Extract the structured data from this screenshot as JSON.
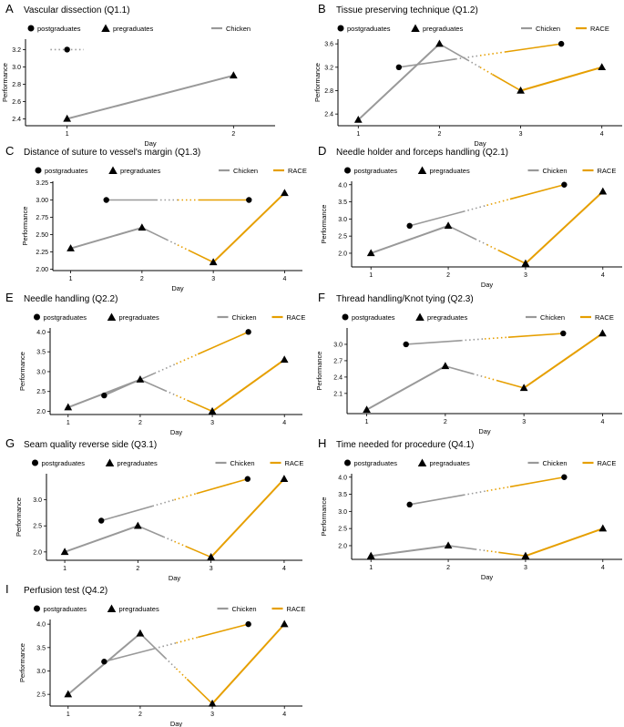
{
  "colors": {
    "chicken": "#999999",
    "race": "#E69F00",
    "marker": "#000000",
    "axis": "#000000"
  },
  "legend": {
    "postgraduates": "postgraduates",
    "pregraduates": "pregraduates",
    "chicken": "Chicken",
    "race": "RACE"
  },
  "chart_data": [
    {
      "type": "line",
      "letter": "A",
      "title": "Vascular dissection (Q1.1)",
      "xlabel": "Day",
      "ylabel": "Performance",
      "xlim": [
        0.75,
        2.25
      ],
      "ylim": [
        2.32,
        3.32
      ],
      "xticks": [
        "1",
        "2"
      ],
      "yticks": [
        "2.4",
        "2.6",
        "2.8",
        "3.0",
        "3.2"
      ],
      "yticks_values": [
        2.4,
        2.6,
        2.8,
        3.0,
        3.2
      ],
      "legend_items": [
        "postgraduates",
        "pregraduates",
        "chicken"
      ],
      "series": [
        {
          "name": "pregraduates",
          "marker": "triangle",
          "points": [
            [
              1,
              2.4
            ],
            [
              2,
              2.9
            ]
          ],
          "segments": [
            {
              "from": 0,
              "to": 1,
              "color": "chicken",
              "style": "solid"
            }
          ]
        },
        {
          "name": "postgraduates",
          "marker": "circle",
          "points": [
            [
              1,
              3.2
            ]
          ],
          "stubs": [
            {
              "x1": 0.9,
              "x2": 1.1,
              "y": 3.2,
              "color": "chicken",
              "style": "dotted"
            }
          ]
        }
      ]
    },
    {
      "type": "line",
      "letter": "B",
      "title": "Tissue preserving technique (Q1.2)",
      "xlabel": "Day",
      "ylabel": "Performance",
      "xlim": [
        0.75,
        4.25
      ],
      "ylim": [
        2.2,
        3.68
      ],
      "xticks": [
        "1",
        "2",
        "3",
        "4"
      ],
      "yticks": [
        "2.4",
        "2.8",
        "3.2",
        "3.6"
      ],
      "yticks_values": [
        2.4,
        2.8,
        3.2,
        3.6
      ],
      "legend_items": [
        "postgraduates",
        "pregraduates",
        "chicken",
        "race"
      ],
      "series": [
        {
          "name": "pregraduates",
          "marker": "triangle",
          "points": [
            [
              1,
              2.3
            ],
            [
              2,
              3.6
            ],
            [
              3,
              2.8
            ],
            [
              4,
              3.2
            ]
          ],
          "segments": [
            {
              "from": 0,
              "to": 1,
              "color": "chicken",
              "style": "solid"
            },
            {
              "from": 1,
              "to": 2,
              "color": "mixed",
              "style": "dotted"
            },
            {
              "from": 2,
              "to": 3,
              "color": "race",
              "style": "solid"
            }
          ]
        },
        {
          "name": "postgraduates",
          "marker": "circle",
          "points": [
            [
              1.5,
              3.2
            ],
            [
              3.5,
              3.6
            ]
          ],
          "segments": [
            {
              "from": 0,
              "to": 1,
              "color": "mixed",
              "style": "dotted"
            }
          ]
        }
      ]
    },
    {
      "type": "line",
      "letter": "C",
      "title": "Distance of suture to vessel's margin (Q1.3)",
      "xlabel": "Day",
      "ylabel": "Performance",
      "xlim": [
        0.75,
        4.25
      ],
      "ylim": [
        1.98,
        3.27
      ],
      "xticks": [
        "1",
        "2",
        "3",
        "4"
      ],
      "yticks": [
        "2.00",
        "2.25",
        "2.50",
        "2.75",
        "3.00",
        "3.25"
      ],
      "yticks_values": [
        2.0,
        2.25,
        2.5,
        2.75,
        3.0,
        3.25
      ],
      "legend_items": [
        "postgraduates",
        "pregraduates",
        "chicken",
        "race"
      ],
      "series": [
        {
          "name": "pregraduates",
          "marker": "triangle",
          "points": [
            [
              1,
              2.3
            ],
            [
              2,
              2.6
            ],
            [
              3,
              2.1
            ],
            [
              4,
              3.1
            ]
          ],
          "segments": [
            {
              "from": 0,
              "to": 1,
              "color": "chicken",
              "style": "solid"
            },
            {
              "from": 1,
              "to": 2,
              "color": "mixed",
              "style": "dotted"
            },
            {
              "from": 2,
              "to": 3,
              "color": "race",
              "style": "solid"
            }
          ]
        },
        {
          "name": "postgraduates",
          "marker": "circle",
          "points": [
            [
              1.5,
              3.0
            ],
            [
              3.5,
              3.0
            ]
          ],
          "segments": [
            {
              "from": 0,
              "to": 1,
              "color": "mixed",
              "style": "dotted"
            }
          ]
        }
      ]
    },
    {
      "type": "line",
      "letter": "D",
      "title": "Needle holder and forceps handling (Q2.1)",
      "xlabel": "Day",
      "ylabel": "Performance",
      "xlim": [
        0.75,
        4.25
      ],
      "ylim": [
        1.6,
        4.1
      ],
      "xticks": [
        "1",
        "2",
        "3",
        "4"
      ],
      "yticks": [
        "2.0",
        "2.5",
        "3.0",
        "3.5",
        "4.0"
      ],
      "yticks_values": [
        2.0,
        2.5,
        3.0,
        3.5,
        4.0
      ],
      "legend_items": [
        "postgraduates",
        "pregraduates",
        "chicken",
        "race"
      ],
      "series": [
        {
          "name": "pregraduates",
          "marker": "triangle",
          "points": [
            [
              1,
              2.0
            ],
            [
              2,
              2.8
            ],
            [
              3,
              1.7
            ],
            [
              4,
              3.8
            ]
          ],
          "segments": [
            {
              "from": 0,
              "to": 1,
              "color": "chicken",
              "style": "solid"
            },
            {
              "from": 1,
              "to": 2,
              "color": "mixed",
              "style": "dotted"
            },
            {
              "from": 2,
              "to": 3,
              "color": "race",
              "style": "solid"
            }
          ]
        },
        {
          "name": "postgraduates",
          "marker": "circle",
          "points": [
            [
              1.5,
              2.8
            ],
            [
              3.5,
              4.0
            ]
          ],
          "segments": [
            {
              "from": 0,
              "to": 1,
              "color": "mixed",
              "style": "dotted"
            }
          ]
        }
      ]
    },
    {
      "type": "line",
      "letter": "E",
      "title": "Needle handling (Q2.2)",
      "xlabel": "Day",
      "ylabel": "Performance",
      "xlim": [
        0.75,
        4.25
      ],
      "ylim": [
        1.92,
        4.1
      ],
      "xticks": [
        "1",
        "2",
        "3",
        "4"
      ],
      "yticks": [
        "2.0",
        "2.5",
        "3.0",
        "3.5",
        "4.0"
      ],
      "yticks_values": [
        2.0,
        2.5,
        3.0,
        3.5,
        4.0
      ],
      "legend_items": [
        "postgraduates",
        "pregraduates",
        "chicken",
        "race"
      ],
      "series": [
        {
          "name": "pregraduates",
          "marker": "triangle",
          "points": [
            [
              1,
              2.1
            ],
            [
              2,
              2.8
            ],
            [
              3,
              2.0
            ],
            [
              4,
              3.3
            ]
          ],
          "segments": [
            {
              "from": 0,
              "to": 1,
              "color": "chicken",
              "style": "solid"
            },
            {
              "from": 1,
              "to": 2,
              "color": "mixed",
              "style": "dotted"
            },
            {
              "from": 2,
              "to": 3,
              "color": "race",
              "style": "solid"
            }
          ]
        },
        {
          "name": "postgraduates",
          "marker": "circle",
          "points": [
            [
              1.5,
              2.4
            ],
            [
              3.5,
              4.0
            ]
          ],
          "segments": [
            {
              "from": 0,
              "to": 1,
              "color": "mixed",
              "style": "dotted"
            }
          ]
        }
      ]
    },
    {
      "type": "line",
      "letter": "F",
      "title": "Thread handling/Knot tying  (Q2.3)",
      "xlabel": "Day",
      "ylabel": "Performance",
      "xlim": [
        0.75,
        4.25
      ],
      "ylim": [
        1.73,
        3.3
      ],
      "xticks": [
        "1",
        "2",
        "3",
        "4"
      ],
      "yticks": [
        "2.1",
        "2.4",
        "2.7",
        "3.0"
      ],
      "yticks_values": [
        2.1,
        2.4,
        2.7,
        3.0
      ],
      "legend_items": [
        "postgraduates",
        "pregraduates",
        "chicken",
        "race"
      ],
      "series": [
        {
          "name": "pregraduates",
          "marker": "triangle",
          "points": [
            [
              1,
              1.8
            ],
            [
              2,
              2.6
            ],
            [
              3,
              2.2
            ],
            [
              4,
              3.2
            ]
          ],
          "segments": [
            {
              "from": 0,
              "to": 1,
              "color": "chicken",
              "style": "solid"
            },
            {
              "from": 1,
              "to": 2,
              "color": "mixed",
              "style": "dotted"
            },
            {
              "from": 2,
              "to": 3,
              "color": "race",
              "style": "solid"
            }
          ]
        },
        {
          "name": "postgraduates",
          "marker": "circle",
          "points": [
            [
              1.5,
              3.0
            ],
            [
              3.5,
              3.2
            ]
          ],
          "segments": [
            {
              "from": 0,
              "to": 1,
              "color": "mixed",
              "style": "dotted"
            }
          ]
        }
      ]
    },
    {
      "type": "line",
      "letter": "G",
      "title": "Seam quality reverse side (Q3.1)",
      "xlabel": "Day",
      "ylabel": "Performance",
      "xlim": [
        0.75,
        4.25
      ],
      "ylim": [
        1.84,
        3.5
      ],
      "xticks": [
        "1",
        "2",
        "3",
        "4"
      ],
      "yticks": [
        "2.0",
        "2.5",
        "3.0"
      ],
      "yticks_values": [
        2.0,
        2.5,
        3.0
      ],
      "legend_items": [
        "postgraduates",
        "pregraduates",
        "chicken",
        "race"
      ],
      "series": [
        {
          "name": "pregraduates",
          "marker": "triangle",
          "points": [
            [
              1,
              2.0
            ],
            [
              2,
              2.5
            ],
            [
              3,
              1.9
            ],
            [
              4,
              3.4
            ]
          ],
          "segments": [
            {
              "from": 0,
              "to": 1,
              "color": "chicken",
              "style": "solid"
            },
            {
              "from": 1,
              "to": 2,
              "color": "mixed",
              "style": "dotted"
            },
            {
              "from": 2,
              "to": 3,
              "color": "race",
              "style": "solid"
            }
          ]
        },
        {
          "name": "postgraduates",
          "marker": "circle",
          "points": [
            [
              1.5,
              2.6
            ],
            [
              3.5,
              3.4
            ]
          ],
          "segments": [
            {
              "from": 0,
              "to": 1,
              "color": "mixed",
              "style": "dotted"
            }
          ]
        }
      ]
    },
    {
      "type": "line",
      "letter": "H",
      "title": "Time needed for procedure (Q4.1)",
      "xlabel": "Day",
      "ylabel": "Performance",
      "xlim": [
        0.75,
        4.25
      ],
      "ylim": [
        1.6,
        4.1
      ],
      "xticks": [
        "1",
        "2",
        "3",
        "4"
      ],
      "yticks": [
        "2.0",
        "2.5",
        "3.0",
        "3.5",
        "4.0"
      ],
      "yticks_values": [
        2.0,
        2.5,
        3.0,
        3.5,
        4.0
      ],
      "legend_items": [
        "postgraduates",
        "pregraduates",
        "chicken",
        "race"
      ],
      "series": [
        {
          "name": "pregraduates",
          "marker": "triangle",
          "points": [
            [
              1,
              1.7
            ],
            [
              2,
              2.0
            ],
            [
              3,
              1.7
            ],
            [
              4,
              2.5
            ]
          ],
          "segments": [
            {
              "from": 0,
              "to": 1,
              "color": "chicken",
              "style": "solid"
            },
            {
              "from": 1,
              "to": 2,
              "color": "mixed",
              "style": "dotted"
            },
            {
              "from": 2,
              "to": 3,
              "color": "race",
              "style": "solid"
            }
          ]
        },
        {
          "name": "postgraduates",
          "marker": "circle",
          "points": [
            [
              1.5,
              3.2
            ],
            [
              3.5,
              4.0
            ]
          ],
          "segments": [
            {
              "from": 0,
              "to": 1,
              "color": "mixed",
              "style": "dotted"
            }
          ]
        }
      ]
    },
    {
      "type": "line",
      "letter": "I",
      "title": "Perfusion test (Q4.2)",
      "xlabel": "Day",
      "ylabel": "Performance",
      "xlim": [
        0.75,
        4.25
      ],
      "ylim": [
        2.25,
        4.1
      ],
      "xticks": [
        "1",
        "2",
        "3",
        "4"
      ],
      "yticks": [
        "2.5",
        "3.0",
        "3.5",
        "4.0"
      ],
      "yticks_values": [
        2.5,
        3.0,
        3.5,
        4.0
      ],
      "legend_items": [
        "postgraduates",
        "pregraduates",
        "chicken",
        "race"
      ],
      "series": [
        {
          "name": "pregraduates",
          "marker": "triangle",
          "points": [
            [
              1,
              2.5
            ],
            [
              2,
              3.8
            ],
            [
              3,
              2.3
            ],
            [
              4,
              4.0
            ]
          ],
          "segments": [
            {
              "from": 0,
              "to": 1,
              "color": "chicken",
              "style": "solid"
            },
            {
              "from": 1,
              "to": 2,
              "color": "mixed",
              "style": "dotted"
            },
            {
              "from": 2,
              "to": 3,
              "color": "race",
              "style": "solid"
            }
          ]
        },
        {
          "name": "postgraduates",
          "marker": "circle",
          "points": [
            [
              1.5,
              3.2
            ],
            [
              3.5,
              4.0
            ]
          ],
          "segments": [
            {
              "from": 0,
              "to": 1,
              "color": "mixed",
              "style": "dotted"
            }
          ]
        }
      ]
    }
  ]
}
